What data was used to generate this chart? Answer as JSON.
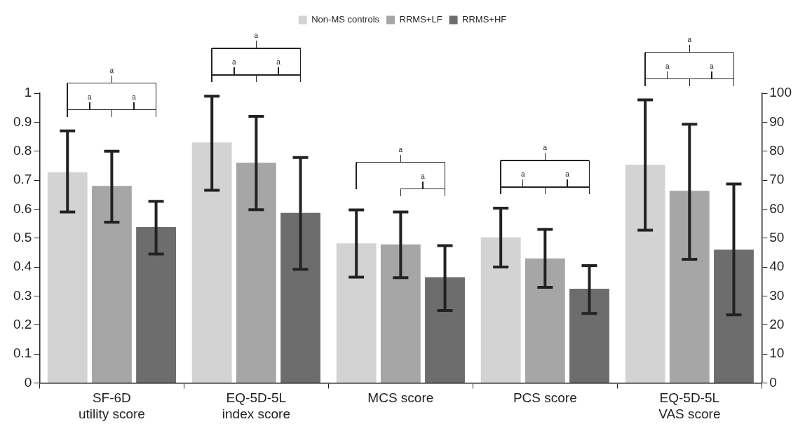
{
  "chart_data": {
    "type": "bar",
    "categories": [
      "SF-6D\nutility score",
      "EQ-5D-5L\nindex score",
      "MCS score",
      "PCS score",
      "EQ-5D-5L\nVAS score"
    ],
    "series": [
      {
        "name": "Non-MS controls",
        "color": "#d3d3d3",
        "values": [
          0.727,
          0.83,
          0.482,
          0.503,
          null
        ],
        "errors": [
          [
            0.59,
            0.87
          ],
          [
            0.665,
            0.99
          ],
          [
            0.365,
            0.597
          ],
          [
            0.4,
            0.603
          ],
          null
        ]
      },
      {
        "name": "RRMS+LF",
        "color": "#a6a6a6",
        "values": [
          0.68,
          0.76,
          0.478,
          0.43,
          null
        ],
        "errors": [
          [
            0.555,
            0.8
          ],
          [
            0.598,
            0.92
          ],
          [
            0.363,
            0.59
          ],
          [
            0.33,
            0.53
          ],
          null
        ]
      },
      {
        "name": "RRMS+HF",
        "color": "#6d6d6d",
        "values": [
          0.538,
          0.587,
          0.365,
          0.325,
          null
        ],
        "errors": [
          [
            0.445,
            0.627
          ],
          [
            0.392,
            0.778
          ],
          [
            0.25,
            0.474
          ],
          [
            0.24,
            0.405
          ],
          null
        ]
      },
      {
        "color": "#d3d3d3",
        "axis": "y2",
        "values": [
          null,
          null,
          null,
          null,
          75.3
        ],
        "errors": [
          null,
          null,
          null,
          null,
          [
            52.7,
            97.7
          ]
        ]
      },
      {
        "color": "#a6a6a6",
        "axis": "y2",
        "values": [
          null,
          null,
          null,
          null,
          66.3
        ],
        "errors": [
          null,
          null,
          null,
          null,
          [
            42.7,
            89.3
          ]
        ]
      },
      {
        "color": "#6d6d6d",
        "axis": "y2",
        "values": [
          null,
          null,
          null,
          null,
          46
        ],
        "errors": [
          null,
          null,
          null,
          null,
          [
            23.5,
            68.7
          ]
        ]
      }
    ],
    "ylim": [
      0,
      1
    ],
    "yticks": [
      0,
      0.1,
      0.2,
      0.3,
      0.4,
      0.5,
      0.6,
      0.7,
      0.8,
      0.9,
      1
    ],
    "y2lim": [
      0,
      100
    ],
    "y2ticks": [
      0,
      10,
      20,
      30,
      40,
      50,
      60,
      70,
      80,
      90,
      100
    ],
    "legend": "top",
    "annotations": [
      "a",
      "a",
      "a",
      "a",
      "a",
      "a",
      "a",
      "a",
      "a",
      "a",
      "a",
      "a",
      "a",
      "a"
    ]
  }
}
